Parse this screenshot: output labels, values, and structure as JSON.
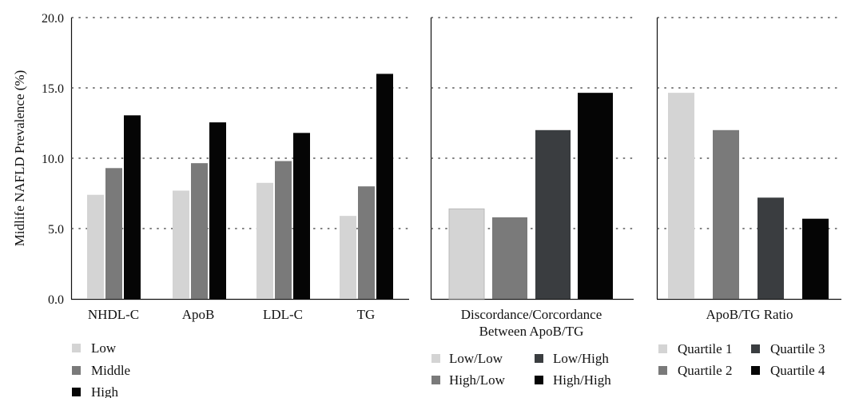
{
  "y_axis_label": "Midlife NAFLD Prevalence (%)",
  "colors": {
    "low": "#d4d4d4",
    "middle": "#7a7a7a",
    "high": "#050505",
    "low_high": "#3a3d40",
    "grid": "#555555"
  },
  "chart_data": [
    {
      "type": "bar",
      "categories": [
        "NHDL-C",
        "ApoB",
        "LDL-C",
        "TG"
      ],
      "series": [
        {
          "name": "Low",
          "values": [
            7.4,
            7.7,
            8.25,
            5.9
          ]
        },
        {
          "name": "Middle",
          "values": [
            9.3,
            9.65,
            9.8,
            8.0
          ]
        },
        {
          "name": "High",
          "values": [
            13.05,
            12.55,
            11.8,
            16.0
          ]
        }
      ],
      "ylabel": "Midlife NAFLD Prevalence (%)",
      "ylim": [
        0,
        20
      ],
      "yticks": [
        "0.0",
        "5.0",
        "10.0",
        "15.0",
        "20.0"
      ],
      "grid": "dotted horizontal",
      "legend": [
        "Low",
        "Middle",
        "High"
      ],
      "legend_position": "bottom"
    },
    {
      "type": "bar",
      "xlabel_line1": "Discordance/Corcordance",
      "xlabel_line2": "Between ApoB/TG",
      "categories": [
        "Low/Low",
        "High/Low",
        "Low/High",
        "High/High"
      ],
      "values": [
        6.4,
        5.8,
        12.0,
        14.65
      ],
      "ylim": [
        0,
        20
      ],
      "grid": "dotted horizontal",
      "legend": [
        "Low/Low",
        "Low/High",
        "High/Low",
        "High/High"
      ],
      "legend_position": "bottom"
    },
    {
      "type": "bar",
      "xlabel": "ApoB/TG Ratio",
      "categories": [
        "Quartile 1",
        "Quartile 2",
        "Quartile 3",
        "Quartile 4"
      ],
      "values": [
        14.65,
        12.0,
        7.2,
        5.7
      ],
      "ylim": [
        0,
        20
      ],
      "grid": "dotted horizontal",
      "legend": [
        "Quartile 1",
        "Quartile 3",
        "Quartile 2",
        "Quartile 4"
      ],
      "legend_position": "bottom"
    }
  ]
}
